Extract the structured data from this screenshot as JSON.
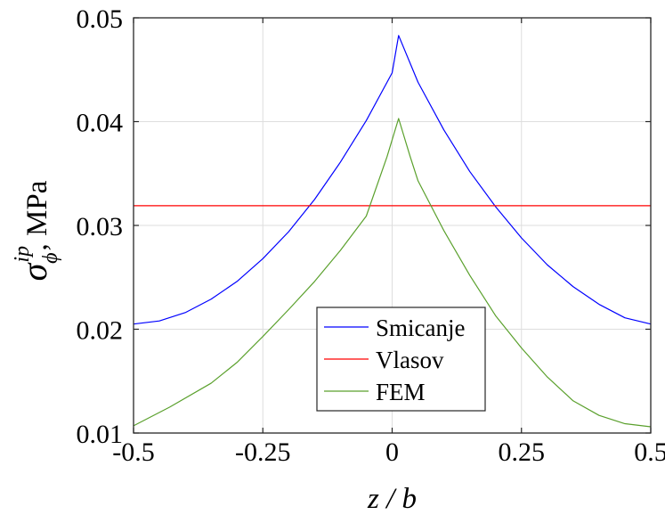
{
  "chart_data": {
    "type": "line",
    "title": "",
    "xlabel": "z / b",
    "ylabel": {
      "symbol": "σ",
      "superscript": "ip",
      "subscript": "ϕ",
      "unit": ", MPa"
    },
    "xlim": [
      -0.5,
      0.5
    ],
    "ylim": [
      0.01,
      0.05
    ],
    "xticks": [
      -0.5,
      -0.25,
      0,
      0.25,
      0.5
    ],
    "xtick_labels": [
      "-0.5",
      "-0.25",
      "0",
      "0.25",
      "0.5"
    ],
    "yticks": [
      0.01,
      0.02,
      0.03,
      0.04,
      0.05
    ],
    "ytick_labels": [
      "0.01",
      "0.02",
      "0.03",
      "0.04",
      "0.05"
    ],
    "grid": true,
    "legend_position": "bottom-center",
    "series": [
      {
        "name": "Smicanje",
        "color": "#0000ff",
        "x": [
          -0.5,
          -0.45,
          -0.4,
          -0.35,
          -0.3,
          -0.25,
          -0.2,
          -0.15,
          -0.1,
          -0.05,
          0.0,
          0.0125,
          0.05,
          0.1,
          0.15,
          0.2,
          0.25,
          0.3,
          0.35,
          0.4,
          0.45,
          0.5
        ],
        "y": [
          0.0205,
          0.0208,
          0.0216,
          0.0229,
          0.0246,
          0.0268,
          0.0294,
          0.0325,
          0.0361,
          0.0401,
          0.0447,
          0.0483,
          0.0438,
          0.0392,
          0.0352,
          0.0318,
          0.0288,
          0.0262,
          0.0241,
          0.0224,
          0.0211,
          0.0205
        ]
      },
      {
        "name": "Vlasov",
        "color": "#ff0000",
        "x": [
          -0.5,
          0.5
        ],
        "y": [
          0.0319,
          0.0319
        ]
      },
      {
        "name": "FEM",
        "color": "#5aa02c",
        "x": [
          -0.5,
          -0.43,
          -0.35,
          -0.3,
          -0.25,
          -0.2,
          -0.15,
          -0.1,
          -0.05,
          -0.01,
          0.0125,
          0.035,
          0.05,
          0.1,
          0.15,
          0.2,
          0.25,
          0.3,
          0.35,
          0.4,
          0.45,
          0.5
        ],
        "y": [
          0.0107,
          0.0125,
          0.0148,
          0.0168,
          0.0193,
          0.0219,
          0.0246,
          0.0276,
          0.0309,
          0.0366,
          0.0403,
          0.0366,
          0.0343,
          0.0295,
          0.0252,
          0.0213,
          0.0182,
          0.0154,
          0.0131,
          0.0117,
          0.0109,
          0.0106
        ]
      }
    ]
  }
}
